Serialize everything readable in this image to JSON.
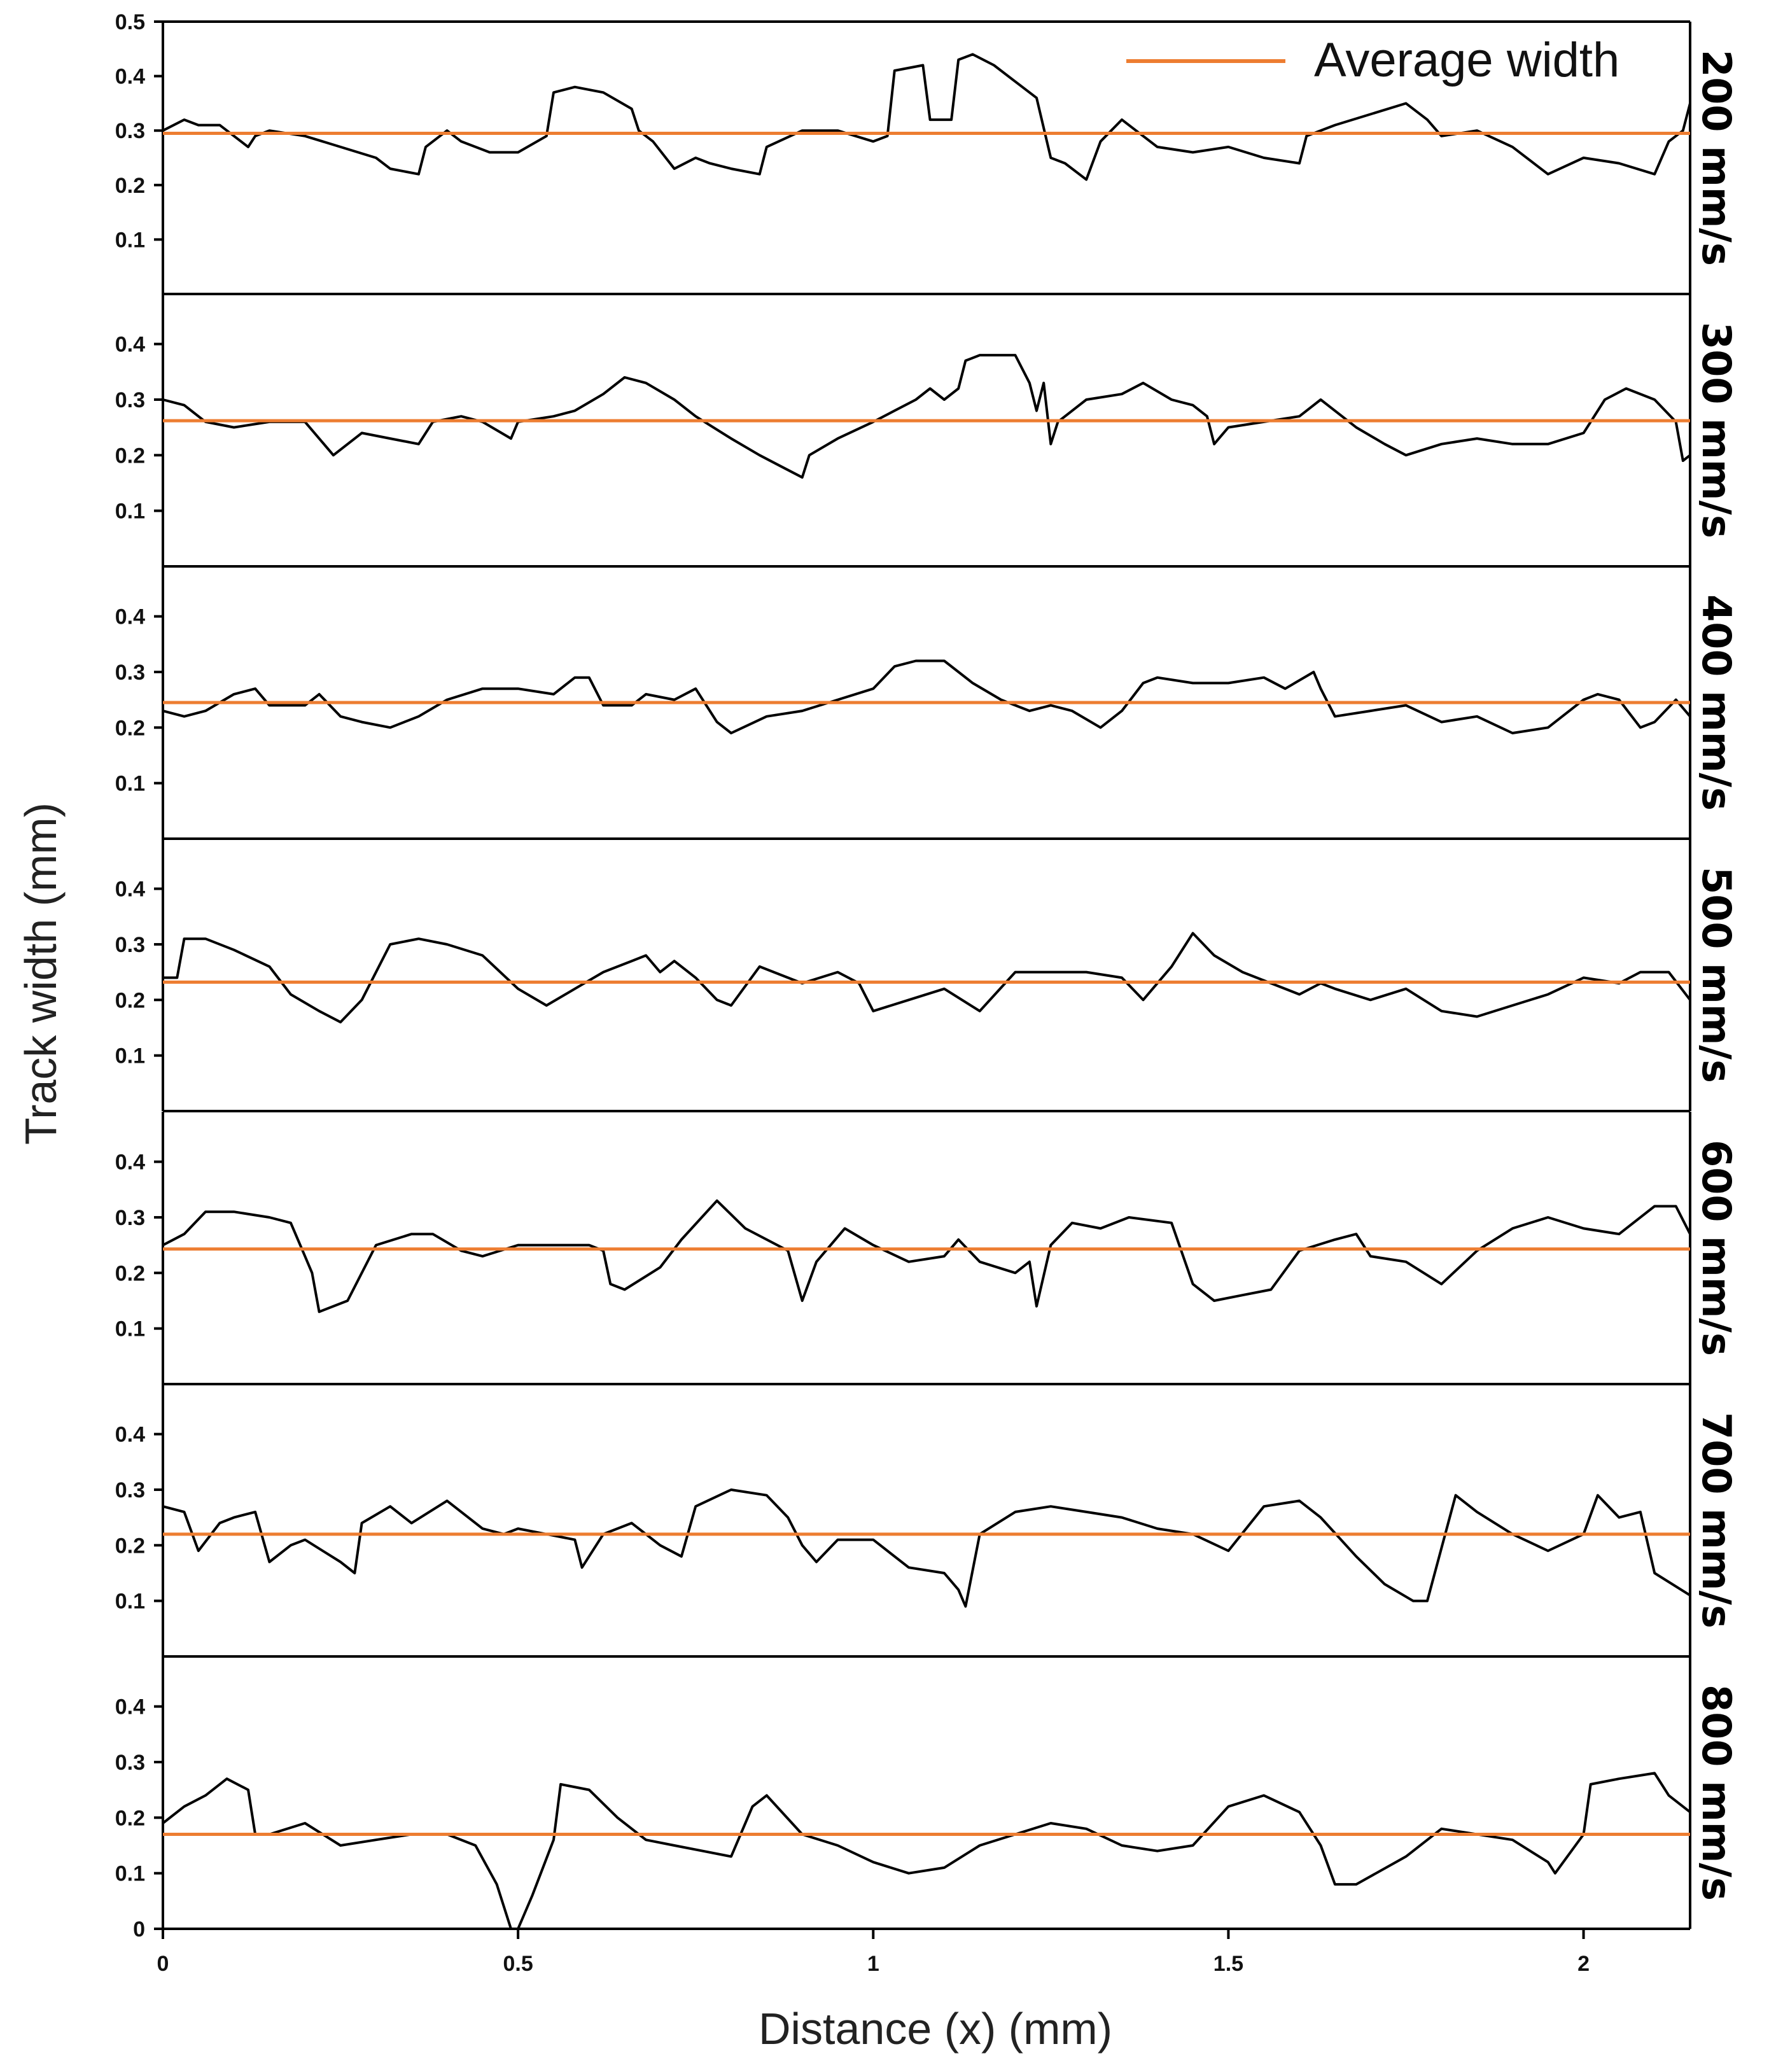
{
  "chart_data": {
    "type": "line",
    "xlabel": "Distance (x) (mm)",
    "ylabel": "Track width (mm)",
    "xlim": [
      0,
      2.15
    ],
    "x_ticks": [
      "0",
      "0.5",
      "1",
      "1.5",
      "2"
    ],
    "legend": {
      "label": "Average width",
      "color": "#ED7D31",
      "position": "top-right"
    },
    "line_color": "#000000",
    "panels": [
      {
        "label": "200 mm/s",
        "ylim": [
          0,
          0.5
        ],
        "y_ticks": [
          "0.1",
          "0.2",
          "0.3",
          "0.4",
          "0.5"
        ],
        "average": 0.295,
        "x": [
          0,
          0.03,
          0.05,
          0.08,
          0.12,
          0.13,
          0.15,
          0.2,
          0.25,
          0.3,
          0.32,
          0.36,
          0.37,
          0.4,
          0.42,
          0.46,
          0.5,
          0.54,
          0.55,
          0.58,
          0.62,
          0.66,
          0.67,
          0.69,
          0.72,
          0.75,
          0.77,
          0.8,
          0.84,
          0.85,
          0.9,
          0.95,
          1.0,
          1.02,
          1.03,
          1.07,
          1.08,
          1.11,
          1.12,
          1.14,
          1.17,
          1.2,
          1.23,
          1.25,
          1.27,
          1.3,
          1.32,
          1.35,
          1.38,
          1.4,
          1.45,
          1.5,
          1.55,
          1.6,
          1.61,
          1.65,
          1.7,
          1.75,
          1.78,
          1.8,
          1.85,
          1.9,
          1.95,
          2.0,
          2.05,
          2.1,
          2.12,
          2.14,
          2.15
        ],
        "values": [
          0.3,
          0.32,
          0.31,
          0.31,
          0.27,
          0.29,
          0.3,
          0.29,
          0.27,
          0.25,
          0.23,
          0.22,
          0.27,
          0.3,
          0.28,
          0.26,
          0.26,
          0.29,
          0.37,
          0.38,
          0.37,
          0.34,
          0.3,
          0.28,
          0.23,
          0.25,
          0.24,
          0.23,
          0.22,
          0.27,
          0.3,
          0.3,
          0.28,
          0.29,
          0.41,
          0.42,
          0.32,
          0.32,
          0.43,
          0.44,
          0.42,
          0.39,
          0.36,
          0.25,
          0.24,
          0.21,
          0.28,
          0.32,
          0.29,
          0.27,
          0.26,
          0.27,
          0.25,
          0.24,
          0.29,
          0.31,
          0.33,
          0.35,
          0.32,
          0.29,
          0.3,
          0.27,
          0.22,
          0.25,
          0.24,
          0.22,
          0.28,
          0.3,
          0.35
        ]
      },
      {
        "label": "300 mm/s",
        "ylim": [
          0,
          0.49
        ],
        "y_ticks": [
          "0.1",
          "0.2",
          "0.3",
          "0.4"
        ],
        "average": 0.262,
        "x": [
          0,
          0.03,
          0.06,
          0.1,
          0.15,
          0.2,
          0.24,
          0.28,
          0.32,
          0.36,
          0.38,
          0.42,
          0.45,
          0.49,
          0.5,
          0.55,
          0.58,
          0.62,
          0.65,
          0.68,
          0.72,
          0.75,
          0.8,
          0.84,
          0.87,
          0.9,
          0.91,
          0.95,
          1.0,
          1.03,
          1.06,
          1.08,
          1.1,
          1.12,
          1.13,
          1.15,
          1.2,
          1.22,
          1.23,
          1.24,
          1.25,
          1.26,
          1.3,
          1.35,
          1.38,
          1.42,
          1.45,
          1.47,
          1.48,
          1.5,
          1.55,
          1.6,
          1.63,
          1.68,
          1.72,
          1.75,
          1.8,
          1.85,
          1.9,
          1.95,
          2.0,
          2.03,
          2.06,
          2.1,
          2.13,
          2.14,
          2.15
        ],
        "values": [
          0.3,
          0.29,
          0.26,
          0.25,
          0.26,
          0.26,
          0.2,
          0.24,
          0.23,
          0.22,
          0.26,
          0.27,
          0.26,
          0.23,
          0.26,
          0.27,
          0.28,
          0.31,
          0.34,
          0.33,
          0.3,
          0.27,
          0.23,
          0.2,
          0.18,
          0.16,
          0.2,
          0.23,
          0.26,
          0.28,
          0.3,
          0.32,
          0.3,
          0.32,
          0.37,
          0.38,
          0.38,
          0.33,
          0.28,
          0.33,
          0.22,
          0.26,
          0.3,
          0.31,
          0.33,
          0.3,
          0.29,
          0.27,
          0.22,
          0.25,
          0.26,
          0.27,
          0.3,
          0.25,
          0.22,
          0.2,
          0.22,
          0.23,
          0.22,
          0.22,
          0.24,
          0.3,
          0.32,
          0.3,
          0.26,
          0.19,
          0.2
        ]
      },
      {
        "label": "400 mm/s",
        "ylim": [
          0,
          0.49
        ],
        "y_ticks": [
          "0.1",
          "0.2",
          "0.3",
          "0.4"
        ],
        "average": 0.245,
        "x": [
          0,
          0.03,
          0.06,
          0.1,
          0.13,
          0.15,
          0.2,
          0.22,
          0.25,
          0.28,
          0.32,
          0.36,
          0.4,
          0.45,
          0.5,
          0.55,
          0.58,
          0.6,
          0.62,
          0.66,
          0.68,
          0.72,
          0.75,
          0.78,
          0.8,
          0.85,
          0.9,
          0.95,
          1.0,
          1.03,
          1.06,
          1.1,
          1.14,
          1.18,
          1.22,
          1.25,
          1.28,
          1.32,
          1.35,
          1.38,
          1.4,
          1.45,
          1.5,
          1.55,
          1.58,
          1.62,
          1.63,
          1.65,
          1.7,
          1.75,
          1.8,
          1.85,
          1.9,
          1.95,
          2.0,
          2.02,
          2.05,
          2.08,
          2.1,
          2.13,
          2.15
        ],
        "values": [
          0.23,
          0.22,
          0.23,
          0.26,
          0.27,
          0.24,
          0.24,
          0.26,
          0.22,
          0.21,
          0.2,
          0.22,
          0.25,
          0.27,
          0.27,
          0.26,
          0.29,
          0.29,
          0.24,
          0.24,
          0.26,
          0.25,
          0.27,
          0.21,
          0.19,
          0.22,
          0.23,
          0.25,
          0.27,
          0.31,
          0.32,
          0.32,
          0.28,
          0.25,
          0.23,
          0.24,
          0.23,
          0.2,
          0.23,
          0.28,
          0.29,
          0.28,
          0.28,
          0.29,
          0.27,
          0.3,
          0.27,
          0.22,
          0.23,
          0.24,
          0.21,
          0.22,
          0.19,
          0.2,
          0.25,
          0.26,
          0.25,
          0.2,
          0.21,
          0.25,
          0.22
        ]
      },
      {
        "label": "500 mm/s",
        "ylim": [
          0,
          0.49
        ],
        "y_ticks": [
          "0.1",
          "0.2",
          "0.3",
          "0.4"
        ],
        "average": 0.232,
        "x": [
          0,
          0.02,
          0.03,
          0.06,
          0.1,
          0.15,
          0.18,
          0.22,
          0.25,
          0.28,
          0.32,
          0.36,
          0.4,
          0.45,
          0.5,
          0.54,
          0.58,
          0.62,
          0.66,
          0.68,
          0.7,
          0.72,
          0.75,
          0.78,
          0.8,
          0.84,
          0.86,
          0.9,
          0.95,
          0.98,
          1.0,
          1.05,
          1.1,
          1.15,
          1.2,
          1.25,
          1.3,
          1.35,
          1.38,
          1.42,
          1.45,
          1.48,
          1.52,
          1.56,
          1.6,
          1.63,
          1.65,
          1.7,
          1.75,
          1.8,
          1.85,
          1.9,
          1.95,
          2.0,
          2.05,
          2.08,
          2.12,
          2.15
        ],
        "values": [
          0.24,
          0.24,
          0.31,
          0.31,
          0.29,
          0.26,
          0.21,
          0.18,
          0.16,
          0.2,
          0.3,
          0.31,
          0.3,
          0.28,
          0.22,
          0.19,
          0.22,
          0.25,
          0.27,
          0.28,
          0.25,
          0.27,
          0.24,
          0.2,
          0.19,
          0.26,
          0.25,
          0.23,
          0.25,
          0.23,
          0.18,
          0.2,
          0.22,
          0.18,
          0.25,
          0.25,
          0.25,
          0.24,
          0.2,
          0.26,
          0.32,
          0.28,
          0.25,
          0.23,
          0.21,
          0.23,
          0.22,
          0.2,
          0.22,
          0.18,
          0.17,
          0.19,
          0.21,
          0.24,
          0.23,
          0.25,
          0.25,
          0.2
        ]
      },
      {
        "label": "600 mm/s",
        "ylim": [
          0,
          0.49
        ],
        "y_ticks": [
          "0.1",
          "0.2",
          "0.3",
          "0.4"
        ],
        "average": 0.243,
        "x": [
          0,
          0.03,
          0.06,
          0.1,
          0.15,
          0.18,
          0.2,
          0.21,
          0.22,
          0.26,
          0.3,
          0.35,
          0.38,
          0.42,
          0.45,
          0.5,
          0.55,
          0.6,
          0.62,
          0.63,
          0.65,
          0.7,
          0.73,
          0.78,
          0.82,
          0.85,
          0.88,
          0.9,
          0.92,
          0.96,
          1.0,
          1.05,
          1.1,
          1.12,
          1.15,
          1.2,
          1.22,
          1.23,
          1.25,
          1.28,
          1.32,
          1.36,
          1.42,
          1.45,
          1.48,
          1.52,
          1.56,
          1.6,
          1.65,
          1.68,
          1.7,
          1.75,
          1.8,
          1.85,
          1.9,
          1.95,
          2.0,
          2.05,
          2.1,
          2.13,
          2.15
        ],
        "values": [
          0.25,
          0.27,
          0.31,
          0.31,
          0.3,
          0.29,
          0.23,
          0.2,
          0.13,
          0.15,
          0.25,
          0.27,
          0.27,
          0.24,
          0.23,
          0.25,
          0.25,
          0.25,
          0.24,
          0.18,
          0.17,
          0.21,
          0.26,
          0.33,
          0.28,
          0.26,
          0.24,
          0.15,
          0.22,
          0.28,
          0.25,
          0.22,
          0.23,
          0.26,
          0.22,
          0.2,
          0.22,
          0.14,
          0.25,
          0.29,
          0.28,
          0.3,
          0.29,
          0.18,
          0.15,
          0.16,
          0.17,
          0.24,
          0.26,
          0.27,
          0.23,
          0.22,
          0.18,
          0.24,
          0.28,
          0.3,
          0.28,
          0.27,
          0.32,
          0.32,
          0.27
        ]
      },
      {
        "label": "700 mm/s",
        "ylim": [
          0,
          0.49
        ],
        "y_ticks": [
          "0.1",
          "0.2",
          "0.3",
          "0.4"
        ],
        "average": 0.22,
        "x": [
          0,
          0.03,
          0.05,
          0.08,
          0.1,
          0.13,
          0.15,
          0.18,
          0.2,
          0.25,
          0.27,
          0.28,
          0.32,
          0.35,
          0.4,
          0.45,
          0.48,
          0.5,
          0.54,
          0.58,
          0.59,
          0.62,
          0.66,
          0.7,
          0.73,
          0.75,
          0.8,
          0.85,
          0.88,
          0.9,
          0.92,
          0.95,
          1.0,
          1.05,
          1.1,
          1.12,
          1.13,
          1.15,
          1.2,
          1.25,
          1.3,
          1.35,
          1.4,
          1.45,
          1.5,
          1.55,
          1.6,
          1.63,
          1.68,
          1.72,
          1.76,
          1.78,
          1.82,
          1.85,
          1.9,
          1.95,
          2.0,
          2.02,
          2.05,
          2.08,
          2.1,
          2.15
        ],
        "values": [
          0.27,
          0.26,
          0.19,
          0.24,
          0.25,
          0.26,
          0.17,
          0.2,
          0.21,
          0.17,
          0.15,
          0.24,
          0.27,
          0.24,
          0.28,
          0.23,
          0.22,
          0.23,
          0.22,
          0.21,
          0.16,
          0.22,
          0.24,
          0.2,
          0.18,
          0.27,
          0.3,
          0.29,
          0.25,
          0.2,
          0.17,
          0.21,
          0.21,
          0.16,
          0.15,
          0.12,
          0.09,
          0.22,
          0.26,
          0.27,
          0.26,
          0.25,
          0.23,
          0.22,
          0.19,
          0.27,
          0.28,
          0.25,
          0.18,
          0.13,
          0.1,
          0.1,
          0.29,
          0.26,
          0.22,
          0.19,
          0.22,
          0.29,
          0.25,
          0.26,
          0.15,
          0.11
        ]
      },
      {
        "label": "800 mm/s",
        "ylim": [
          0,
          0.49
        ],
        "y_ticks": [
          "0",
          "0.1",
          "0.2",
          "0.3",
          "0.4"
        ],
        "average": 0.17,
        "x": [
          0,
          0.03,
          0.06,
          0.09,
          0.12,
          0.13,
          0.15,
          0.2,
          0.25,
          0.3,
          0.35,
          0.4,
          0.44,
          0.47,
          0.49,
          0.5,
          0.52,
          0.55,
          0.56,
          0.6,
          0.64,
          0.68,
          0.72,
          0.76,
          0.8,
          0.83,
          0.85,
          0.9,
          0.95,
          1.0,
          1.05,
          1.1,
          1.15,
          1.2,
          1.25,
          1.3,
          1.35,
          1.4,
          1.45,
          1.5,
          1.55,
          1.6,
          1.63,
          1.65,
          1.68,
          1.75,
          1.8,
          1.85,
          1.9,
          1.95,
          1.96,
          2.0,
          2.01,
          2.05,
          2.1,
          2.12,
          2.15
        ],
        "values": [
          0.19,
          0.22,
          0.24,
          0.27,
          0.25,
          0.17,
          0.17,
          0.19,
          0.15,
          0.16,
          0.17,
          0.17,
          0.15,
          0.08,
          0.0,
          0.0,
          0.06,
          0.16,
          0.26,
          0.25,
          0.2,
          0.16,
          0.15,
          0.14,
          0.13,
          0.22,
          0.24,
          0.17,
          0.15,
          0.12,
          0.1,
          0.11,
          0.15,
          0.17,
          0.19,
          0.18,
          0.15,
          0.14,
          0.15,
          0.22,
          0.24,
          0.21,
          0.15,
          0.08,
          0.08,
          0.13,
          0.18,
          0.17,
          0.16,
          0.12,
          0.1,
          0.17,
          0.26,
          0.27,
          0.28,
          0.24,
          0.21
        ]
      }
    ]
  }
}
